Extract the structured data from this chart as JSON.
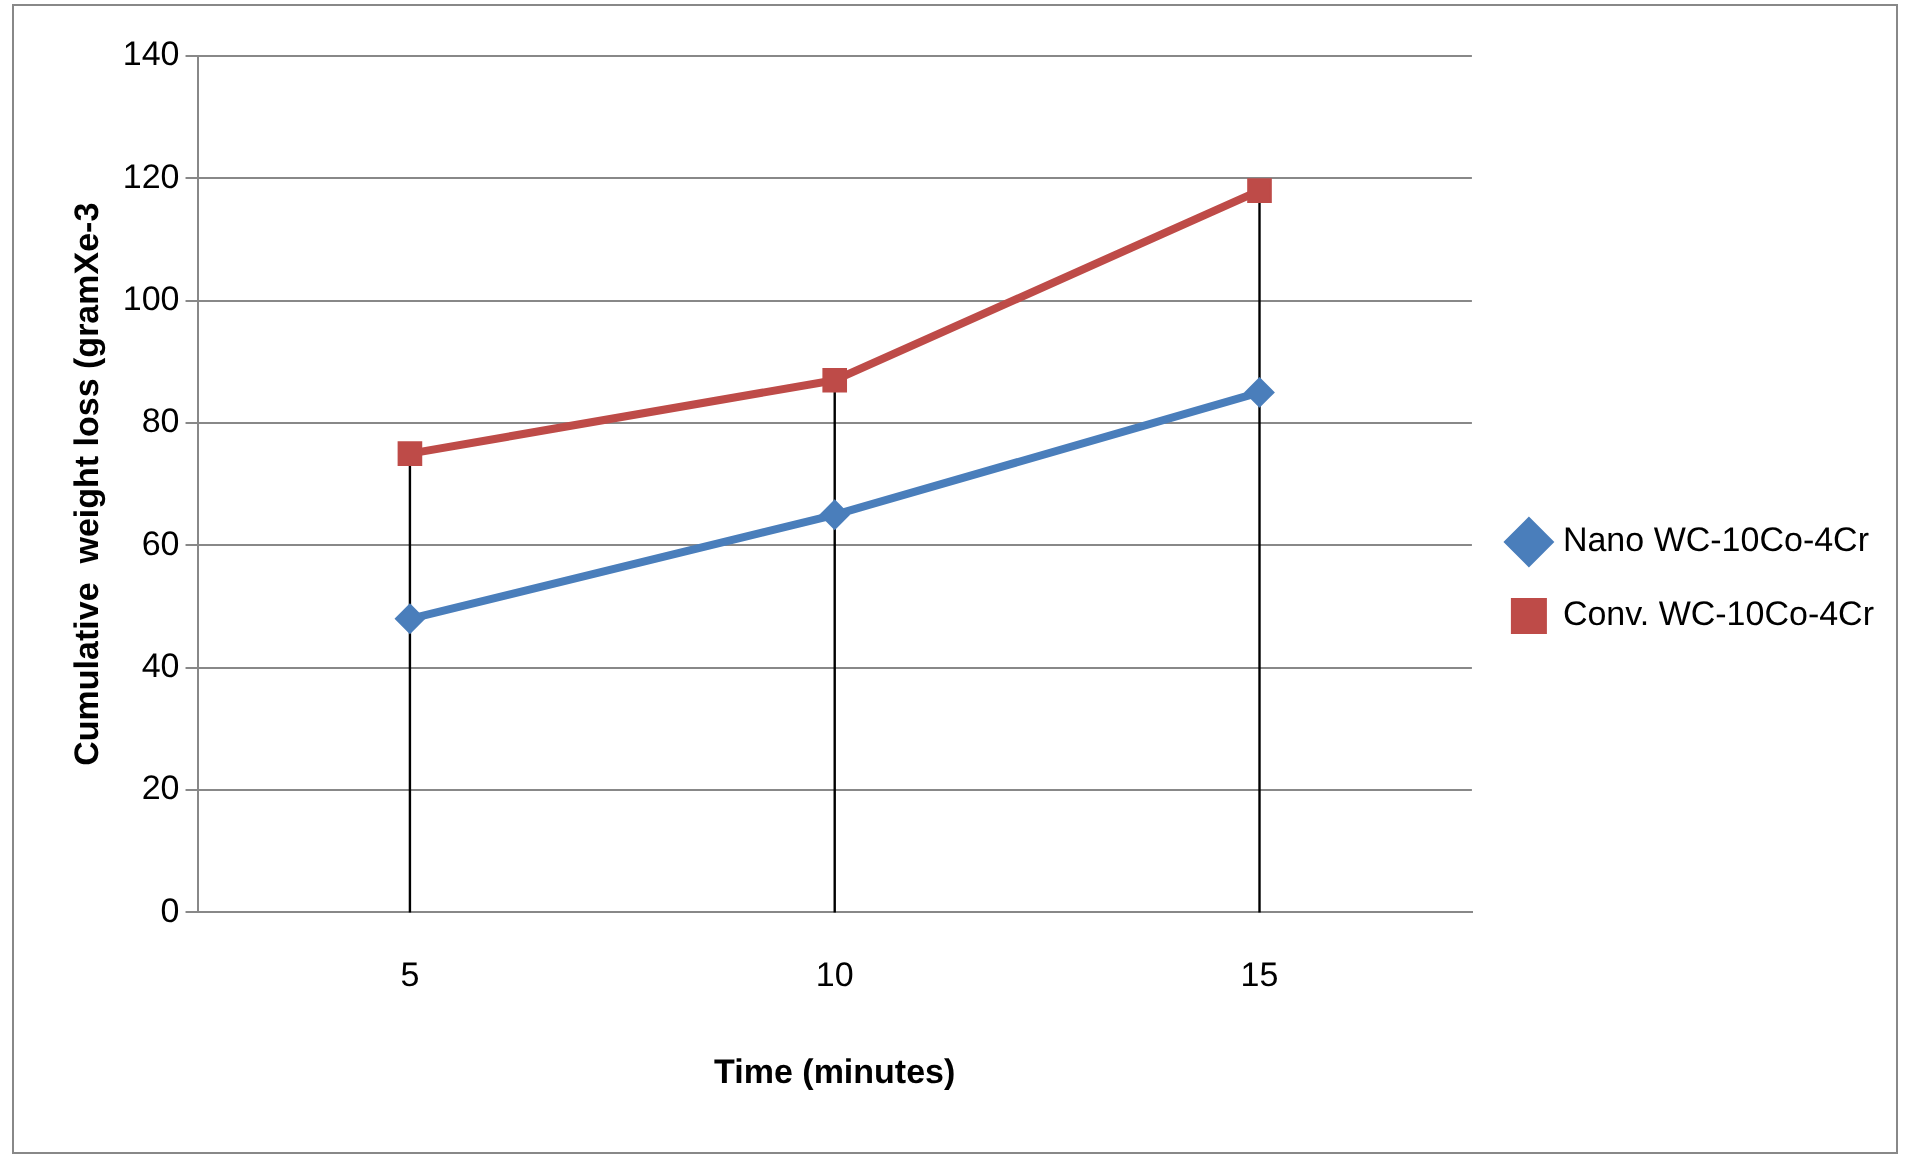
{
  "chart_data": {
    "type": "line",
    "xlabel": "Time (minutes)",
    "ylabel": "Cumulative  weight loss (gramXe-3",
    "categories": [
      "5",
      "10",
      "15"
    ],
    "series": [
      {
        "name": "Nano WC-10Co-4Cr",
        "color": "#4a7ebb",
        "values": [
          48,
          65,
          85
        ],
        "marker": "diamond"
      },
      {
        "name": "Conv. WC-10Co-4Cr",
        "color": "#be4b48",
        "values": [
          75,
          87,
          118
        ],
        "marker": "square"
      }
    ],
    "ylim": [
      0,
      140
    ],
    "yticks": [
      0,
      20,
      40,
      60,
      80,
      100,
      120,
      140
    ],
    "grid": "y",
    "legend": "right",
    "line_style": "solid",
    "ref_lines": [
      {
        "axis": "x",
        "value": "5",
        "color": "#000000"
      },
      {
        "axis": "x",
        "value": "10",
        "color": "#000000"
      },
      {
        "axis": "x",
        "value": "15",
        "color": "#000000"
      }
    ]
  }
}
